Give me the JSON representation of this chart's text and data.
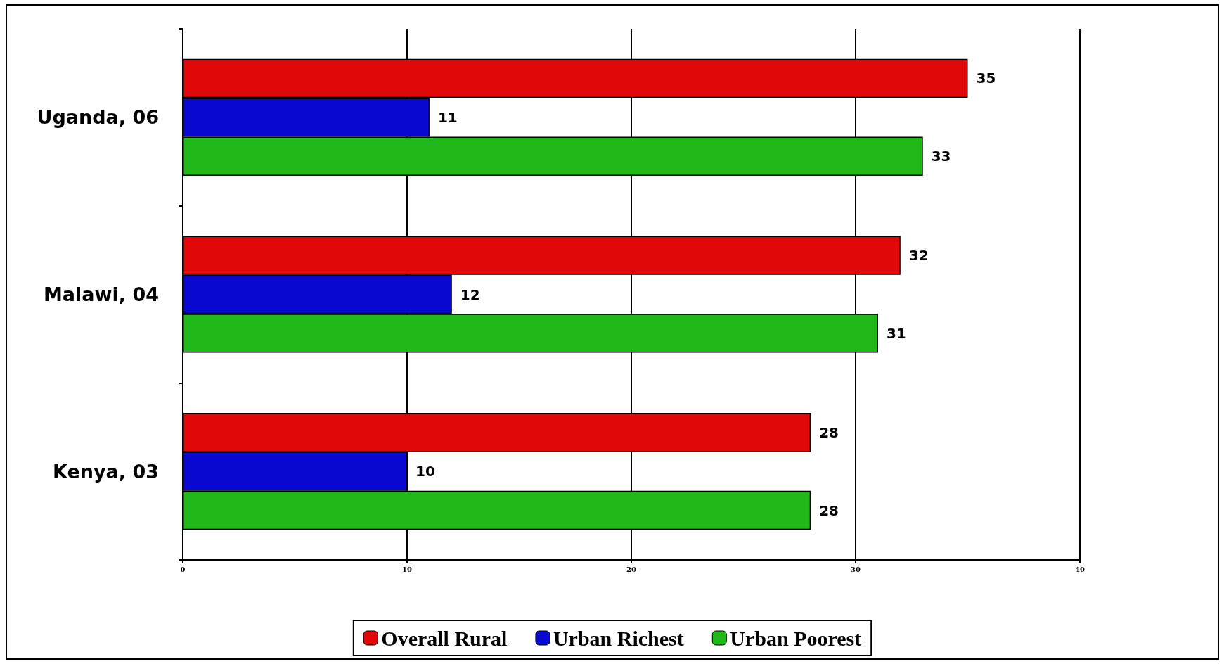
{
  "chart_data": {
    "type": "bar",
    "orientation": "horizontal",
    "categories": [
      "Uganda, 06",
      "Malawi, 04",
      "Kenya, 03"
    ],
    "series": [
      {
        "name": "Overall Rural",
        "color": "#e00808",
        "values": [
          35,
          32,
          28
        ]
      },
      {
        "name": "Urban Richest",
        "color": "#0808d0",
        "values": [
          11,
          12,
          10
        ]
      },
      {
        "name": "Urban Poorest",
        "color": "#20b818",
        "values": [
          33,
          31,
          28
        ]
      }
    ],
    "xlim": [
      0,
      40
    ],
    "xticks": [
      0,
      10,
      20,
      30,
      40
    ],
    "grid": "x",
    "legend": "bottom",
    "data_labels": true
  }
}
